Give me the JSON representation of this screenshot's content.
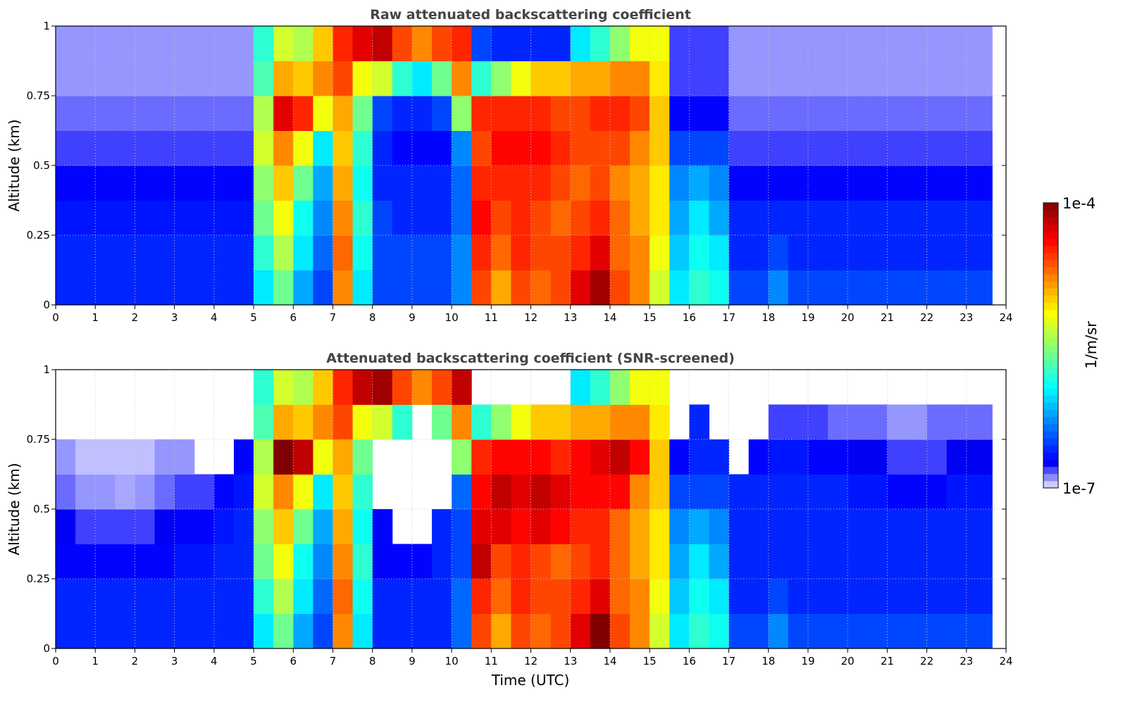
{
  "chart_data": [
    {
      "type": "heatmap",
      "title": "Raw attenuated backscattering coefficient",
      "xlabel": "",
      "ylabel": "Altitude (km)",
      "xlim": [
        0,
        24
      ],
      "ylim": [
        0,
        1
      ],
      "grid": true,
      "xticks": [
        "0",
        "1",
        "2",
        "3",
        "4",
        "5",
        "6",
        "7",
        "8",
        "9",
        "10",
        "11",
        "12",
        "13",
        "14",
        "15",
        "16",
        "17",
        "18",
        "19",
        "20",
        "21",
        "22",
        "23",
        "24"
      ],
      "yticks": [
        "0",
        "0.25",
        "0.5",
        "0.75",
        "1"
      ],
      "time_bin_hours": 0.5,
      "time_end": 23.65,
      "altitude_bin_km": 0.125,
      "value_scale": "log10 (1/m/sr)",
      "values_log10": [
        [
          -6.6,
          -6.6,
          -6.65,
          -6.7,
          -6.8,
          -6.85,
          -6.9,
          -6.9
        ],
        [
          -6.6,
          -6.6,
          -6.65,
          -6.7,
          -6.8,
          -6.85,
          -6.9,
          -6.9
        ],
        [
          -6.6,
          -6.6,
          -6.65,
          -6.7,
          -6.8,
          -6.85,
          -6.9,
          -6.9
        ],
        [
          -6.6,
          -6.6,
          -6.65,
          -6.7,
          -6.8,
          -6.85,
          -6.9,
          -6.9
        ],
        [
          -6.6,
          -6.6,
          -6.65,
          -6.7,
          -6.8,
          -6.85,
          -6.9,
          -6.9
        ],
        [
          -6.6,
          -6.6,
          -6.65,
          -6.7,
          -6.8,
          -6.85,
          -6.9,
          -6.9
        ],
        [
          -6.6,
          -6.6,
          -6.65,
          -6.7,
          -6.8,
          -6.85,
          -6.9,
          -6.9
        ],
        [
          -6.6,
          -6.6,
          -6.65,
          -6.7,
          -6.8,
          -6.85,
          -6.9,
          -6.9
        ],
        [
          -6.6,
          -6.6,
          -6.65,
          -6.7,
          -6.8,
          -6.85,
          -6.9,
          -6.9
        ],
        [
          -6.6,
          -6.6,
          -6.65,
          -6.7,
          -6.8,
          -6.85,
          -6.9,
          -6.9
        ],
        [
          -6.0,
          -5.8,
          -5.6,
          -5.5,
          -5.3,
          -5.4,
          -5.7,
          -5.8
        ],
        [
          -5.6,
          -5.4,
          -5.2,
          -5.0,
          -4.8,
          -4.3,
          -4.9,
          -5.3
        ],
        [
          -6.2,
          -6.0,
          -5.9,
          -5.6,
          -5.2,
          -4.5,
          -5.0,
          -5.4
        ],
        [
          -6.5,
          -6.4,
          -6.3,
          -6.2,
          -6.0,
          -5.2,
          -4.8,
          -5.0
        ],
        [
          -4.8,
          -4.7,
          -4.8,
          -4.9,
          -5.0,
          -4.9,
          -4.6,
          -4.5
        ],
        [
          -6.0,
          -5.9,
          -5.8,
          -5.9,
          -5.8,
          -5.6,
          -5.2,
          -4.3
        ],
        [
          -6.5,
          -6.5,
          -6.5,
          -6.6,
          -6.6,
          -6.5,
          -5.3,
          -4.2
        ],
        [
          -6.5,
          -6.5,
          -6.6,
          -6.6,
          -6.7,
          -6.6,
          -5.8,
          -4.6
        ],
        [
          -6.5,
          -6.5,
          -6.6,
          -6.6,
          -6.7,
          -6.6,
          -6.0,
          -4.8
        ],
        [
          -6.5,
          -6.5,
          -6.6,
          -6.6,
          -6.7,
          -6.5,
          -5.6,
          -4.6
        ],
        [
          -6.3,
          -6.3,
          -6.4,
          -6.4,
          -6.3,
          -5.5,
          -4.8,
          -4.5
        ],
        [
          -4.6,
          -4.5,
          -4.4,
          -4.5,
          -4.6,
          -4.5,
          -5.8,
          -6.5
        ],
        [
          -4.9,
          -4.7,
          -4.6,
          -4.5,
          -4.4,
          -4.5,
          -5.5,
          -6.6
        ],
        [
          -4.6,
          -4.5,
          -4.5,
          -4.5,
          -4.4,
          -4.5,
          -5.2,
          -6.6
        ],
        [
          -4.7,
          -4.6,
          -4.6,
          -4.5,
          -4.4,
          -4.5,
          -5.0,
          -6.6
        ],
        [
          -4.6,
          -4.6,
          -4.7,
          -4.6,
          -4.5,
          -4.6,
          -5.0,
          -6.6
        ],
        [
          -4.3,
          -4.5,
          -4.6,
          -4.7,
          -4.6,
          -4.6,
          -4.9,
          -6.0
        ],
        [
          -4.1,
          -4.3,
          -4.5,
          -4.6,
          -4.6,
          -4.5,
          -4.9,
          -5.8
        ],
        [
          -4.6,
          -4.7,
          -4.7,
          -4.8,
          -4.6,
          -4.5,
          -4.8,
          -5.5
        ],
        [
          -4.8,
          -4.8,
          -4.9,
          -4.9,
          -4.8,
          -4.6,
          -4.8,
          -5.2
        ],
        [
          -5.3,
          -5.2,
          -5.1,
          -5.1,
          -5.0,
          -5.0,
          -5.1,
          -5.2
        ],
        [
          -6.0,
          -6.1,
          -6.2,
          -6.3,
          -6.5,
          -6.7,
          -6.8,
          -6.8
        ],
        [
          -5.8,
          -5.9,
          -6.0,
          -6.2,
          -6.5,
          -6.7,
          -6.8,
          -6.8
        ],
        [
          -5.9,
          -6.0,
          -6.2,
          -6.3,
          -6.5,
          -6.7,
          -6.8,
          -6.8
        ],
        [
          -6.5,
          -6.6,
          -6.6,
          -6.7,
          -6.8,
          -6.85,
          -6.9,
          -6.9
        ],
        [
          -6.5,
          -6.6,
          -6.6,
          -6.7,
          -6.8,
          -6.85,
          -6.9,
          -6.9
        ],
        [
          -6.3,
          -6.5,
          -6.6,
          -6.7,
          -6.8,
          -6.85,
          -6.9,
          -6.9
        ],
        [
          -6.5,
          -6.6,
          -6.6,
          -6.7,
          -6.8,
          -6.85,
          -6.9,
          -6.9
        ],
        [
          -6.5,
          -6.6,
          -6.6,
          -6.7,
          -6.8,
          -6.85,
          -6.9,
          -6.9
        ],
        [
          -6.5,
          -6.6,
          -6.6,
          -6.7,
          -6.8,
          -6.85,
          -6.9,
          -6.9
        ],
        [
          -6.5,
          -6.6,
          -6.6,
          -6.7,
          -6.8,
          -6.85,
          -6.9,
          -6.9
        ],
        [
          -6.5,
          -6.6,
          -6.6,
          -6.7,
          -6.8,
          -6.85,
          -6.9,
          -6.9
        ],
        [
          -6.5,
          -6.6,
          -6.6,
          -6.7,
          -6.8,
          -6.85,
          -6.9,
          -6.9
        ],
        [
          -6.5,
          -6.6,
          -6.6,
          -6.7,
          -6.8,
          -6.85,
          -6.9,
          -6.9
        ],
        [
          -6.5,
          -6.6,
          -6.6,
          -6.7,
          -6.8,
          -6.85,
          -6.9,
          -6.9
        ],
        [
          -6.5,
          -6.6,
          -6.6,
          -6.7,
          -6.8,
          -6.85,
          -6.9,
          -6.9
        ],
        [
          -6.5,
          -6.6,
          -6.6,
          -6.7,
          -6.8,
          -6.85,
          -6.9,
          -6.9
        ],
        [
          -6.5,
          -6.6,
          -6.6,
          -6.7,
          -6.8,
          -6.85,
          -6.9,
          -6.9
        ]
      ]
    },
    {
      "type": "heatmap",
      "title": "Attenuated backscattering coefficient (SNR-screened)",
      "xlabel": "Time (UTC)",
      "ylabel": "Altitude (km)",
      "xlim": [
        0,
        24
      ],
      "ylim": [
        0,
        1
      ],
      "grid": true,
      "xticks": [
        "0",
        "1",
        "2",
        "3",
        "4",
        "5",
        "6",
        "7",
        "8",
        "9",
        "10",
        "11",
        "12",
        "13",
        "14",
        "15",
        "16",
        "17",
        "18",
        "19",
        "20",
        "21",
        "22",
        "23",
        "24"
      ],
      "yticks": [
        "0",
        "0.25",
        "0.5",
        "0.75",
        "1"
      ],
      "time_bin_hours": 0.5,
      "time_end": 23.65,
      "altitude_bin_km": 0.125,
      "value_scale": "log10 (1/m/sr)",
      "values_log10": [
        [
          -6.6,
          -6.6,
          -6.7,
          -6.75,
          -6.85,
          -6.9,
          null,
          null
        ],
        [
          -6.6,
          -6.6,
          -6.7,
          -6.8,
          -6.9,
          -6.95,
          null,
          null
        ],
        [
          -6.6,
          -6.6,
          -6.7,
          -6.8,
          -6.9,
          -6.95,
          null,
          null
        ],
        [
          -6.6,
          -6.6,
          -6.7,
          -6.8,
          -6.92,
          -6.95,
          null,
          null
        ],
        [
          -6.6,
          -6.6,
          -6.7,
          -6.8,
          -6.9,
          -6.95,
          null,
          null
        ],
        [
          -6.6,
          -6.6,
          -6.7,
          -6.75,
          -6.85,
          -6.9,
          null,
          null
        ],
        [
          -6.6,
          -6.6,
          -6.65,
          -6.7,
          -6.8,
          -6.9,
          null,
          null
        ],
        [
          -6.6,
          -6.6,
          -6.65,
          -6.7,
          -6.8,
          null,
          null,
          null
        ],
        [
          -6.6,
          -6.6,
          -6.6,
          -6.65,
          -6.7,
          null,
          null,
          null
        ],
        [
          -6.6,
          -6.6,
          -6.6,
          -6.6,
          -6.65,
          -6.7,
          null,
          null
        ],
        [
          -6.0,
          -5.8,
          -5.6,
          -5.5,
          -5.3,
          -5.4,
          -5.7,
          -5.8
        ],
        [
          -5.6,
          -5.4,
          -5.2,
          -5.0,
          -4.8,
          -4.0,
          -4.9,
          -5.3
        ],
        [
          -6.2,
          -6.0,
          -5.9,
          -5.6,
          -5.2,
          -4.2,
          -5.0,
          -5.4
        ],
        [
          -6.5,
          -6.4,
          -6.3,
          -6.2,
          -6.0,
          -5.2,
          -4.8,
          -5.0
        ],
        [
          -4.8,
          -4.7,
          -4.8,
          -4.9,
          -5.0,
          -4.9,
          -4.6,
          -4.5
        ],
        [
          -6.0,
          -5.9,
          -5.8,
          -5.9,
          -5.8,
          -5.6,
          -5.2,
          -4.2
        ],
        [
          -6.6,
          -6.6,
          -6.7,
          -6.7,
          null,
          null,
          -5.3,
          -4.1
        ],
        [
          -6.6,
          -6.6,
          -6.7,
          null,
          null,
          null,
          -5.8,
          -4.6
        ],
        [
          -6.6,
          -6.6,
          -6.7,
          null,
          null,
          null,
          null,
          -4.8
        ],
        [
          -6.6,
          -6.6,
          -6.6,
          -6.6,
          null,
          null,
          -5.6,
          -4.6
        ],
        [
          -6.4,
          -6.4,
          -6.5,
          -6.5,
          -6.4,
          -5.5,
          -4.8,
          -4.2
        ],
        [
          -4.6,
          -4.5,
          -4.2,
          -4.3,
          -4.4,
          -4.5,
          -5.8,
          null
        ],
        [
          -4.9,
          -4.7,
          -4.6,
          -4.3,
          -4.2,
          -4.4,
          -5.5,
          null
        ],
        [
          -4.6,
          -4.5,
          -4.5,
          -4.4,
          -4.3,
          -4.4,
          -5.2,
          null
        ],
        [
          -4.7,
          -4.6,
          -4.6,
          -4.3,
          -4.2,
          -4.4,
          -5.0,
          null
        ],
        [
          -4.6,
          -4.6,
          -4.7,
          -4.4,
          -4.3,
          -4.5,
          -5.0,
          null
        ],
        [
          -4.3,
          -4.5,
          -4.6,
          -4.5,
          -4.4,
          -4.4,
          -4.9,
          -6.0
        ],
        [
          -4.0,
          -4.3,
          -4.5,
          -4.5,
          -4.4,
          -4.3,
          -4.9,
          -5.8
        ],
        [
          -4.6,
          -4.7,
          -4.7,
          -4.7,
          -4.4,
          -4.2,
          -4.8,
          -5.5
        ],
        [
          -4.8,
          -4.8,
          -4.9,
          -4.9,
          -4.8,
          -4.4,
          -4.8,
          -5.2
        ],
        [
          -5.3,
          -5.2,
          -5.1,
          -5.1,
          -5.0,
          -5.0,
          -5.1,
          -5.2
        ],
        [
          -6.0,
          -6.1,
          -6.2,
          -6.3,
          -6.5,
          -6.7,
          null,
          null
        ],
        [
          -5.8,
          -5.9,
          -6.0,
          -6.2,
          -6.5,
          -6.6,
          -6.6,
          null
        ],
        [
          -5.9,
          -6.0,
          -6.2,
          -6.3,
          -6.5,
          -6.6,
          null,
          null
        ],
        [
          -6.5,
          -6.6,
          -6.6,
          -6.6,
          -6.6,
          null,
          null,
          null
        ],
        [
          -6.5,
          -6.6,
          -6.6,
          -6.6,
          -6.6,
          -6.7,
          null,
          null
        ],
        [
          -6.3,
          -6.5,
          -6.6,
          -6.6,
          -6.6,
          -6.65,
          -6.8,
          null
        ],
        [
          -6.5,
          -6.6,
          -6.6,
          -6.6,
          -6.6,
          -6.65,
          -6.8,
          null
        ],
        [
          -6.5,
          -6.6,
          -6.6,
          -6.6,
          -6.6,
          -6.7,
          -6.8,
          null
        ],
        [
          -6.5,
          -6.6,
          -6.6,
          -6.6,
          -6.6,
          -6.7,
          -6.85,
          null
        ],
        [
          -6.5,
          -6.6,
          -6.6,
          -6.6,
          -6.65,
          -6.75,
          -6.85,
          null
        ],
        [
          -6.5,
          -6.6,
          -6.6,
          -6.6,
          -6.65,
          -6.75,
          -6.85,
          null
        ],
        [
          -6.5,
          -6.6,
          -6.6,
          -6.6,
          -6.7,
          -6.8,
          -6.9,
          null
        ],
        [
          -6.5,
          -6.6,
          -6.6,
          -6.6,
          -6.7,
          -6.8,
          -6.9,
          null
        ],
        [
          -6.5,
          -6.6,
          -6.6,
          -6.6,
          -6.7,
          -6.8,
          -6.85,
          null
        ],
        [
          -6.5,
          -6.6,
          -6.6,
          -6.6,
          -6.65,
          -6.75,
          -6.85,
          null
        ],
        [
          -6.5,
          -6.6,
          -6.6,
          -6.6,
          -6.65,
          -6.75,
          -6.85,
          null
        ],
        [
          -6.5,
          -6.6,
          -6.6,
          -6.6,
          -6.65,
          -6.75,
          -6.85,
          null
        ]
      ]
    }
  ],
  "colorbar": {
    "label": "1/m/sr",
    "max_label": "1e-4",
    "min_label": "1e-7",
    "range_log10": [
      -7,
      -4
    ],
    "steps": 40
  }
}
